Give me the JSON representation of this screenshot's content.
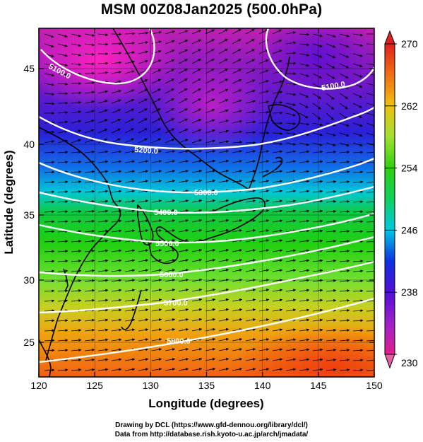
{
  "title": "MSM 00Z08Jan2025 (500.0hPa)",
  "xaxis": {
    "label": "Longitude (degrees)",
    "range": [
      120,
      150
    ],
    "ticks": [
      "120",
      "125",
      "130",
      "135",
      "140",
      "145",
      "150"
    ]
  },
  "yaxis": {
    "label": "Latitude (degrees)",
    "range": [
      22.5,
      47.5
    ],
    "ticks": [
      "25",
      "30",
      "35",
      "40",
      "45"
    ]
  },
  "colorbar": {
    "range": [
      230,
      270
    ],
    "ticks": [
      "230",
      "238",
      "246",
      "254",
      "262",
      "270"
    ],
    "colors": [
      "#e02090",
      "#a020c8",
      "#3010d8",
      "#00c8e8",
      "#10d020",
      "#a0e030",
      "#f0c010",
      "#f07010",
      "#e02020"
    ]
  },
  "contours": [
    {
      "label": "5100.0",
      "value": 5100
    },
    {
      "label": "5100.0",
      "value": 5100
    },
    {
      "label": "5200.0",
      "value": 5200
    },
    {
      "label": "5300.0",
      "value": 5300
    },
    {
      "label": "5400.0",
      "value": 5400
    },
    {
      "label": "5500.0",
      "value": 5500
    },
    {
      "label": "5600.0",
      "value": 5600
    },
    {
      "label": "5700.0",
      "value": 5700
    },
    {
      "label": "5800.0",
      "value": 5800
    }
  ],
  "credits": {
    "line1": "Drawing by DCL (https://www.gfd-dennou.org/library/dcl/)",
    "line2": "Data from http://database.rish.kyoto-u.ac.jp/arch/jmadata/"
  }
}
